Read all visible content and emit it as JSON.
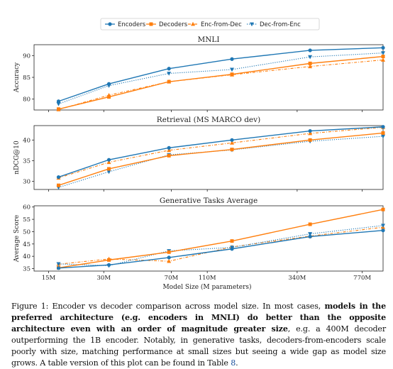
{
  "chart_data": {
    "type": "line",
    "x_label": "Model Size (M parameters)",
    "x": [
      17,
      32,
      68,
      150,
      400,
      1000
    ],
    "x_ticks": [
      {
        "value": 15,
        "label": "15M"
      },
      {
        "value": 30,
        "label": "30M"
      },
      {
        "value": 70,
        "label": "70M"
      },
      {
        "value": 110,
        "label": "110M"
      },
      {
        "value": 340,
        "label": "340M"
      },
      {
        "value": 770,
        "label": "770M"
      }
    ],
    "x_scale": "log",
    "legend": [
      {
        "name": "Encoders",
        "color": "#1f77b4",
        "style": "solid",
        "marker": "circle"
      },
      {
        "name": "Decoders",
        "color": "#ff7f0e",
        "style": "solid",
        "marker": "square"
      },
      {
        "name": "Enc-from-Dec",
        "color": "#ff7f0e",
        "style": "dashdot",
        "marker": "triangle-up"
      },
      {
        "name": "Dec-from-Enc",
        "color": "#1f77b4",
        "style": "dotted",
        "marker": "triangle-down"
      }
    ],
    "panels": [
      {
        "title": "MNLI",
        "ylabel": "Accuracy",
        "ylim": [
          77.5,
          92.5
        ],
        "yticks": [
          80,
          85,
          90
        ],
        "series": [
          {
            "name": "Encoders",
            "values": [
              79.5,
              83.5,
              87.0,
              89.2,
              91.2,
              91.8
            ]
          },
          {
            "name": "Decoders",
            "values": [
              77.7,
              80.5,
              84.0,
              85.7,
              88.2,
              89.8
            ]
          },
          {
            "name": "Enc-from-Dec",
            "values": [
              77.6,
              80.9,
              84.0,
              85.6,
              87.5,
              89.0
            ]
          },
          {
            "name": "Dec-from-Enc",
            "values": [
              78.9,
              83.1,
              85.9,
              86.8,
              89.7,
              90.6
            ]
          }
        ]
      },
      {
        "title": "Retrieval (MS MARCO dev)",
        "ylabel": "nDCG@10",
        "ylim": [
          28.0,
          43.5
        ],
        "yticks": [
          30,
          35,
          40
        ],
        "series": [
          {
            "name": "Encoders",
            "values": [
              31.0,
              35.2,
              38.1,
              40.0,
              42.2,
              43.2
            ]
          },
          {
            "name": "Decoders",
            "values": [
              29.0,
              33.0,
              36.2,
              37.7,
              40.0,
              41.7
            ]
          },
          {
            "name": "Enc-from-Dec",
            "values": [
              30.8,
              34.6,
              37.5,
              39.3,
              41.6,
              43.1
            ]
          },
          {
            "name": "Dec-from-Enc",
            "values": [
              28.5,
              32.3,
              36.4,
              37.6,
              39.7,
              40.9
            ]
          }
        ]
      },
      {
        "title": "Generative Tasks Average",
        "ylabel": "Average Score",
        "ylim": [
          34.0,
          60.5
        ],
        "yticks": [
          35,
          40,
          45,
          50,
          55,
          60
        ],
        "series": [
          {
            "name": "Encoders",
            "values": [
              35.2,
              36.5,
              39.5,
              43.0,
              48.0,
              50.5
            ]
          },
          {
            "name": "Decoders",
            "values": [
              35.3,
              38.5,
              41.7,
              46.2,
              53.0,
              59.0
            ]
          },
          {
            "name": "Enc-from-Dec",
            "values": [
              36.8,
              38.9,
              38.0,
              43.8,
              48.2,
              51.8
            ]
          },
          {
            "name": "Dec-from-Enc",
            "values": [
              36.9,
              36.2,
              42.2,
              43.6,
              49.1,
              52.5
            ]
          }
        ]
      }
    ]
  },
  "caption": {
    "part1": "Figure 1: Encoder vs decoder comparison across model size. In most cases, ",
    "bold": "models in the preferred architecture (e.g. encoders in MNLI) do better than the opposite architecture even with an order of magnitude greater size",
    "part2": ", e.g. a 400M decoder outperforming the 1B encoder. Notably, in generative tasks, decoders-from-encoders scale poorly with size, matching performance at small sizes but seeing a wide gap as model size grows. A table version of this plot can be found in Table ",
    "table_ref": "8",
    "end": "."
  }
}
